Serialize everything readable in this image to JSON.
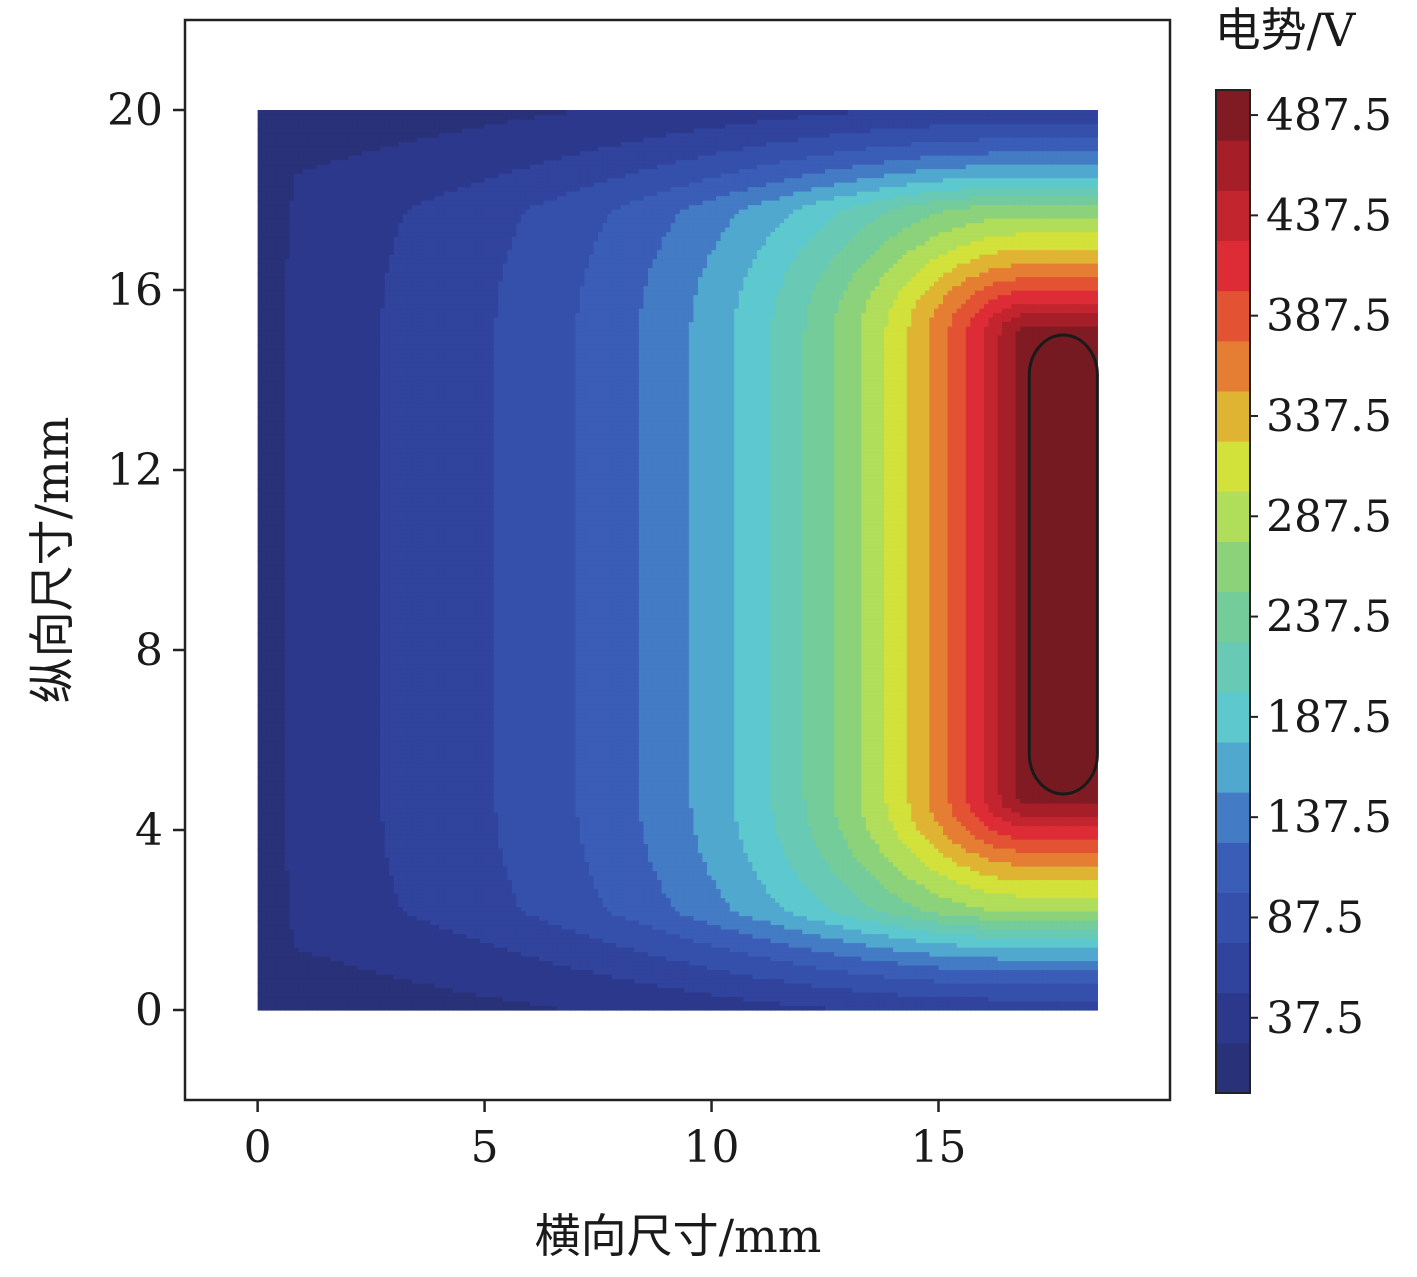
{
  "chart_data": {
    "type": "heatmap",
    "subtype": "filled-contour",
    "title": "",
    "xlabel": "横向尺寸/mm",
    "ylabel": "纵向尺寸/mm",
    "xlim": [
      -1.6,
      20.1
    ],
    "ylim": [
      -2,
      22
    ],
    "xticks": [
      0,
      5,
      10,
      15
    ],
    "yticks": [
      0,
      4,
      8,
      12,
      16,
      20
    ],
    "domain": {
      "x": [
        0,
        18.5
      ],
      "y": [
        0,
        20
      ]
    },
    "electrode": {
      "x": [
        17.0,
        18.5
      ],
      "y": [
        4.8,
        15.0
      ],
      "potential": 500
    },
    "colorbar": {
      "title": "电势/V",
      "ticks": [
        37.5,
        87.5,
        137.5,
        187.5,
        237.5,
        287.5,
        337.5,
        387.5,
        437.5,
        487.5
      ],
      "range": [
        0,
        500
      ],
      "levels": 20,
      "placement": "right"
    },
    "colors": {
      "low": "#2b3582",
      "mid": "#5fcfd8",
      "high": "#e8e833",
      "peak": "#6d1b20"
    }
  }
}
